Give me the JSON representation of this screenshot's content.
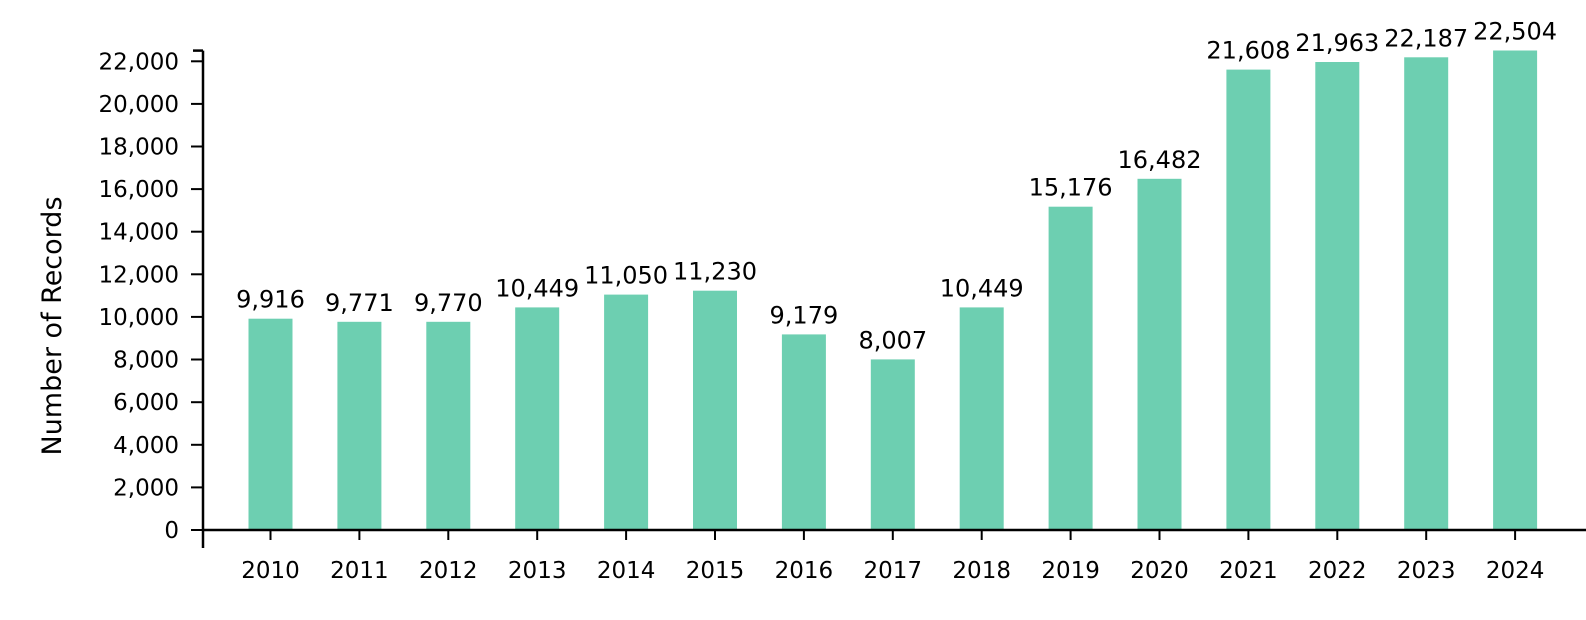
{
  "chart_data": {
    "type": "bar",
    "title": "",
    "xlabel": "",
    "ylabel": "Number of Records",
    "ylim": [
      0,
      22000
    ],
    "yticks": [
      0,
      2000,
      4000,
      6000,
      8000,
      10000,
      12000,
      14000,
      16000,
      18000,
      20000,
      22000
    ],
    "ytick_labels": [
      "0",
      "2,000",
      "4,000",
      "6,000",
      "8,000",
      "10,000",
      "12,000",
      "14,000",
      "16,000",
      "18,000",
      "20,000",
      "22,000"
    ],
    "categories": [
      "2010",
      "2011",
      "2012",
      "2013",
      "2014",
      "2015",
      "2016",
      "2017",
      "2018",
      "2019",
      "2020",
      "2021",
      "2022",
      "2023",
      "2024"
    ],
    "values": [
      9916,
      9771,
      9770,
      10449,
      11050,
      11230,
      9179,
      8007,
      10449,
      15176,
      16482,
      21608,
      21963,
      22187,
      22504
    ],
    "value_labels": [
      "9,916",
      "9,771",
      "9,770",
      "10,449",
      "11,050",
      "11,230",
      "9,179",
      "8,007",
      "10,449",
      "15,176",
      "16,482",
      "21,608",
      "21,963",
      "22,187",
      "22,504"
    ],
    "bar_color": "#6dcfb1",
    "axis_color": "#000000",
    "grid": false,
    "legend": false
  }
}
